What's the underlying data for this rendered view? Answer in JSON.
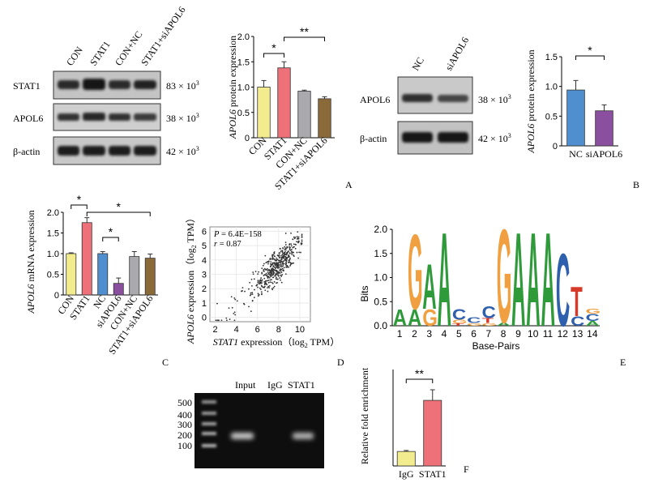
{
  "panels": {
    "A": {
      "letter": "A",
      "lanes": [
        "CON",
        "STAT1",
        "CON+NC",
        "STAT1+siAPOL6"
      ],
      "blots": [
        {
          "protein": "STAT1",
          "size": "83 × 10",
          "exp": "3"
        },
        {
          "protein": "APOL6",
          "size": "38 × 10",
          "exp": "3"
        },
        {
          "protein": "β-actin",
          "size": "42 × 10",
          "exp": "3"
        }
      ]
    },
    "B": {
      "letter": "B",
      "lanes": [
        "NC",
        "siAPOL6"
      ],
      "blots": [
        {
          "protein": "APOL6",
          "size": "38 × 10",
          "exp": "3"
        },
        {
          "protein": "β-actin",
          "size": "42 × 10",
          "exp": "3"
        }
      ]
    },
    "C": {
      "letter": "C"
    },
    "D": {
      "letter": "D",
      "p_label": "P",
      "p_value": " = 6.4E−158",
      "r_label": "r",
      "r_value": " = 0.87"
    },
    "E": {
      "letter": "E"
    },
    "F": {
      "letter": "F",
      "gel_lanes": [
        "Input",
        "IgG",
        "STAT1"
      ],
      "markers": [
        "500",
        "400",
        "300",
        "200",
        "100"
      ]
    }
  },
  "chart_data": [
    {
      "id": "A-bar",
      "type": "bar",
      "categories": [
        "CON",
        "STAT1",
        "CON+NC",
        "STAT1+siAPOL6"
      ],
      "values": [
        1.0,
        1.38,
        0.92,
        0.77
      ],
      "errors": [
        0.13,
        0.12,
        0.02,
        0.04
      ],
      "colors": [
        "#f3ec8e",
        "#ee7078",
        "#a9a9ae",
        "#8b6a3a"
      ],
      "ylabel_italic": "APOL6",
      "ylabel_rest": " protein expression",
      "ylim": [
        0,
        2.0
      ],
      "yticks": [
        "0",
        "0.5",
        "1.0",
        "1.5",
        "2.0"
      ],
      "significance": [
        {
          "from": 0,
          "to": 1,
          "label": "*"
        },
        {
          "from": 1,
          "to": 3,
          "label": "**"
        }
      ]
    },
    {
      "id": "B-bar",
      "type": "bar",
      "categories": [
        "NC",
        "siAPOL6"
      ],
      "values": [
        0.94,
        0.59
      ],
      "errors": [
        0.16,
        0.1
      ],
      "colors": [
        "#4f8fcf",
        "#8a4f9e"
      ],
      "ylabel_italic": "APOL6",
      "ylabel_rest": " protein expression",
      "ylim": [
        0,
        1.5
      ],
      "yticks": [
        "0",
        "0.5",
        "1.0",
        "1.5"
      ],
      "significance": [
        {
          "from": 0,
          "to": 1,
          "label": "*"
        }
      ]
    },
    {
      "id": "C-bar",
      "type": "bar",
      "categories": [
        "CON",
        "STAT1",
        "NC",
        "siAPOL6",
        "CON+NC",
        "STAT1+siAPOL6"
      ],
      "values": [
        1.0,
        1.75,
        1.0,
        0.28,
        0.93,
        0.89
      ],
      "errors": [
        0.02,
        0.12,
        0.05,
        0.13,
        0.12,
        0.1
      ],
      "colors": [
        "#f3ec8e",
        "#ee7078",
        "#4f8fcf",
        "#8a4f9e",
        "#a9a9ae",
        "#8b6a3a"
      ],
      "ylabel_italic": "APOL6",
      "ylabel_rest": " mRNA expression",
      "ylim": [
        0,
        2.0
      ],
      "yticks": [
        "0",
        "0.5",
        "1.0",
        "1.5",
        "2.0"
      ],
      "significance": [
        {
          "from": 0,
          "to": 1,
          "label": "*"
        },
        {
          "from": 2,
          "to": 3,
          "label": "*"
        },
        {
          "from": 1,
          "to": 5,
          "label": "*"
        }
      ]
    },
    {
      "id": "D-scatter",
      "type": "scatter",
      "xlabel_italic": "STAT1",
      "xlabel_rest": " expression（log",
      "xlabel_sub": "2",
      "xlabel_end": " TPM）",
      "ylabel_italic": "APOL6",
      "ylabel_rest": " expression（log",
      "ylabel_sub": "2",
      "ylabel_end": " TPM）",
      "xlim": [
        1.5,
        11
      ],
      "ylim": [
        -0.3,
        6.3
      ],
      "xticks": [
        2,
        4,
        6,
        8,
        10
      ],
      "yticks": [
        0,
        1,
        2,
        3,
        4,
        5,
        6
      ],
      "grid": true,
      "correlation": 0.87,
      "n_points": 500
    },
    {
      "id": "E-logo",
      "type": "sequence-logo",
      "ylabel": "Bits",
      "xlabel": "Base-Pairs",
      "ylim": [
        0,
        2.0
      ],
      "yticks": [
        "0.0",
        "0.5",
        "1.0",
        "1.5",
        "2.0"
      ],
      "positions": [
        "1",
        "2",
        "3",
        "4",
        "5",
        "6",
        "7",
        "8",
        "9",
        "10",
        "11",
        "12",
        "13",
        "14"
      ],
      "letter_colors": {
        "A": "#2e9a3a",
        "G": "#f0a040",
        "C": "#2f60ad",
        "T": "#d83a2a"
      },
      "columns": [
        [
          [
            "A",
            0.35
          ]
        ],
        [
          [
            "A",
            0.35
          ],
          [
            "G",
            1.6
          ]
        ],
        [
          [
            "G",
            0.35
          ],
          [
            "A",
            0.95
          ]
        ],
        [
          [
            "A",
            2.0
          ]
        ],
        [
          [
            "T",
            0.05
          ],
          [
            "G",
            0.08
          ],
          [
            "C",
            0.22
          ]
        ],
        [
          [
            "G",
            0.06
          ],
          [
            "C",
            0.12
          ]
        ],
        [
          [
            "G",
            0.06
          ],
          [
            "T",
            0.1
          ],
          [
            "C",
            0.26
          ]
        ],
        [
          [
            "A",
            0.07
          ],
          [
            "G",
            2.0
          ]
        ],
        [
          [
            "A",
            2.0
          ]
        ],
        [
          [
            "A",
            2.0
          ]
        ],
        [
          [
            "A",
            2.0
          ]
        ],
        [
          [
            "C",
            1.55
          ]
        ],
        [
          [
            "C",
            0.2
          ],
          [
            "T",
            0.63
          ]
        ],
        [
          [
            "A",
            0.1
          ],
          [
            "C",
            0.15
          ],
          [
            "G",
            0.1
          ]
        ]
      ]
    },
    {
      "id": "F-bar",
      "type": "bar",
      "categories": [
        "IgG",
        "STAT1"
      ],
      "values": [
        1.5,
        6.8
      ],
      "errors": [
        0.1,
        1.1
      ],
      "colors": [
        "#f3ec8e",
        "#ee7078"
      ],
      "ylabel": "Relative fold enrichment",
      "ylim": [
        0,
        10
      ],
      "significance": [
        {
          "from": 0,
          "to": 1,
          "label": "**"
        }
      ]
    }
  ]
}
